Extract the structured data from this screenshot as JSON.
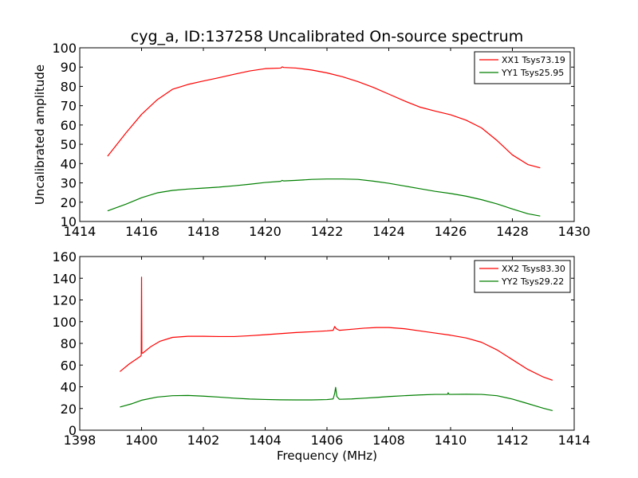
{
  "title": "cyg_a, ID:137258 Uncalibrated On-source spectrum",
  "ylabel": "Uncalibrated amplitude",
  "xlabel": "Frequency (MHz)",
  "chart_data": [
    {
      "type": "line",
      "title": "cyg_a, ID:137258 Uncalibrated On-source spectrum",
      "xlabel": "",
      "ylabel": "Uncalibrated amplitude",
      "xlim": [
        1414,
        1430
      ],
      "ylim": [
        10,
        100
      ],
      "xticks": [
        "1414",
        "1416",
        "1418",
        "1420",
        "1422",
        "1424",
        "1426",
        "1428",
        "1430"
      ],
      "yticks": [
        "10",
        "20",
        "30",
        "40",
        "50",
        "60",
        "70",
        "80",
        "90",
        "100"
      ],
      "grid": false,
      "legend": "top-right",
      "series": [
        {
          "name": "XX1 Tsys73.19",
          "color": "#ff0000",
          "x": [
            1414.9,
            1415.5,
            1416,
            1416.5,
            1417,
            1417.5,
            1418,
            1418.5,
            1419,
            1419.5,
            1420,
            1420.5,
            1420.55,
            1420.6,
            1421,
            1421.5,
            1422,
            1422.5,
            1423,
            1423.5,
            1424,
            1424.5,
            1425,
            1425.5,
            1426,
            1426.5,
            1427,
            1427.5,
            1428,
            1428.5,
            1428.9
          ],
          "y": [
            43.8,
            56,
            65.5,
            73,
            78.5,
            81,
            82.8,
            84.5,
            86.3,
            88,
            89.2,
            89.5,
            90.1,
            89.8,
            89.5,
            88.5,
            87,
            85,
            82.5,
            79.5,
            76,
            72.5,
            69.3,
            67.2,
            65.3,
            62.5,
            58.5,
            52,
            44.5,
            39.5,
            37.8
          ]
        },
        {
          "name": "YY1 Tsys25.95",
          "color": "#007f00",
          "x": [
            1414.9,
            1415.5,
            1416,
            1416.5,
            1417,
            1417.5,
            1418,
            1418.5,
            1419,
            1419.5,
            1420,
            1420.5,
            1420.55,
            1420.6,
            1421,
            1421.5,
            1422,
            1422.5,
            1423,
            1423.5,
            1424,
            1424.5,
            1425,
            1425.5,
            1426,
            1426.5,
            1427,
            1427.5,
            1428,
            1428.5,
            1428.9
          ],
          "y": [
            15.5,
            19,
            22.3,
            24.8,
            26.1,
            26.8,
            27.3,
            27.8,
            28.5,
            29.3,
            30.2,
            30.8,
            31.3,
            31,
            31.3,
            31.8,
            32,
            32,
            31.8,
            30.9,
            29.8,
            28.4,
            27,
            25.6,
            24.5,
            23.1,
            21.3,
            19.1,
            16.5,
            14,
            12.8
          ]
        }
      ]
    },
    {
      "type": "line",
      "title": "",
      "xlabel": "Frequency (MHz)",
      "ylabel": "",
      "xlim": [
        1398,
        1414
      ],
      "ylim": [
        0,
        160
      ],
      "xticks": [
        "1398",
        "1400",
        "1402",
        "1404",
        "1406",
        "1408",
        "1410",
        "1412",
        "1414"
      ],
      "yticks": [
        "0",
        "20",
        "40",
        "60",
        "80",
        "100",
        "120",
        "140",
        "160"
      ],
      "grid": false,
      "legend": "top-right",
      "series": [
        {
          "name": "XX2 Tsys83.30",
          "color": "#ff0000",
          "x": [
            1399.3,
            1399.6,
            1399.96,
            1399.99,
            1400.0,
            1400.01,
            1400.04,
            1400.3,
            1400.6,
            1401,
            1401.5,
            1402,
            1402.5,
            1403,
            1403.5,
            1404,
            1404.5,
            1405,
            1405.5,
            1406,
            1406.2,
            1406.25,
            1406.3,
            1406.4,
            1406.8,
            1407.2,
            1407.6,
            1408,
            1408.5,
            1409,
            1409.5,
            1410,
            1410.5,
            1411,
            1411.5,
            1412,
            1412.5,
            1413,
            1413.3
          ],
          "y": [
            54,
            61,
            68,
            69,
            141,
            71,
            71,
            77,
            82,
            85.5,
            86.5,
            86.5,
            86.3,
            86.3,
            87,
            88,
            89,
            90,
            90.7,
            91.5,
            92,
            95.5,
            93.5,
            92,
            93,
            94,
            94.6,
            94.6,
            93.5,
            91.5,
            89.5,
            87.5,
            85,
            81,
            74,
            65,
            56,
            49,
            46
          ]
        },
        {
          "name": "YY2 Tsys29.22",
          "color": "#007f00",
          "x": [
            1399.3,
            1399.7,
            1400,
            1400.5,
            1401,
            1401.5,
            1402,
            1402.5,
            1403,
            1403.5,
            1404,
            1404.5,
            1405,
            1405.5,
            1406,
            1406.2,
            1406.25,
            1406.28,
            1406.32,
            1406.4,
            1406.8,
            1407.2,
            1407.6,
            1408,
            1408.5,
            1409,
            1409.5,
            1409.9,
            1409.92,
            1409.95,
            1410.5,
            1411,
            1411.5,
            1412,
            1412.5,
            1413,
            1413.3
          ],
          "y": [
            21.3,
            24.5,
            27.6,
            30.5,
            31.8,
            32,
            31.4,
            30.5,
            29.5,
            28.7,
            28.3,
            28,
            27.9,
            27.9,
            28.2,
            28.8,
            34,
            39.5,
            31,
            28.5,
            28.8,
            29.5,
            30.2,
            31,
            31.8,
            32.5,
            33,
            33,
            34.5,
            33,
            33.1,
            33,
            31.8,
            28.7,
            24.5,
            20.2,
            18
          ]
        }
      ]
    }
  ]
}
